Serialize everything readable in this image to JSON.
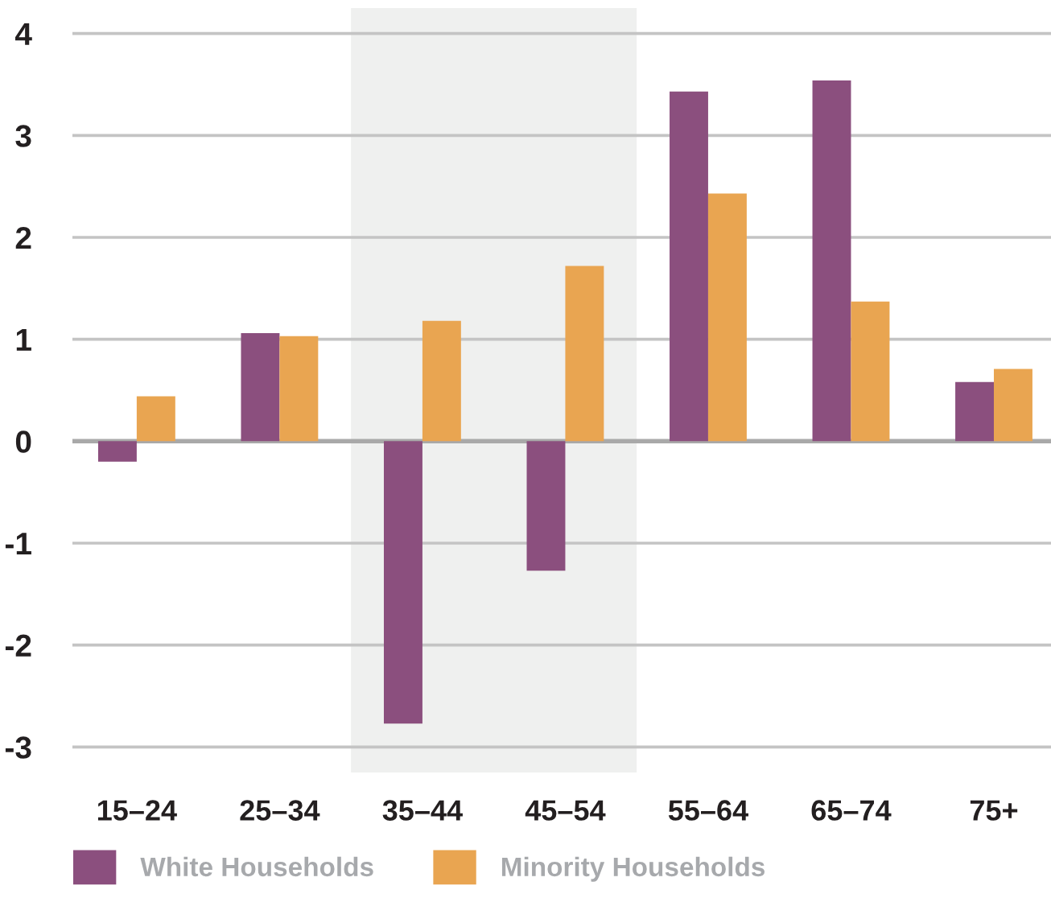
{
  "chart_data": {
    "type": "bar",
    "categories": [
      "15–24",
      "25–34",
      "35–44",
      "45–54",
      "55–64",
      "65–74",
      "75+"
    ],
    "series": [
      {
        "name": "White Households",
        "color": "#8b4f7e",
        "values": [
          -0.2,
          1.06,
          -2.77,
          -1.27,
          3.43,
          3.54,
          0.58
        ]
      },
      {
        "name": "Minority Households",
        "color": "#e9a551",
        "values": [
          0.44,
          1.03,
          1.18,
          1.72,
          2.43,
          1.37,
          0.71
        ]
      }
    ],
    "ylim": [
      -3.25,
      4.25
    ],
    "yticks": [
      -3,
      -2,
      -1,
      0,
      1,
      2,
      3,
      4
    ],
    "grid": "y",
    "legend": "bottom left",
    "bands": [
      {
        "axis": "x",
        "from": "35–44",
        "to": "45–54",
        "color": "#eff0ef"
      }
    ]
  }
}
